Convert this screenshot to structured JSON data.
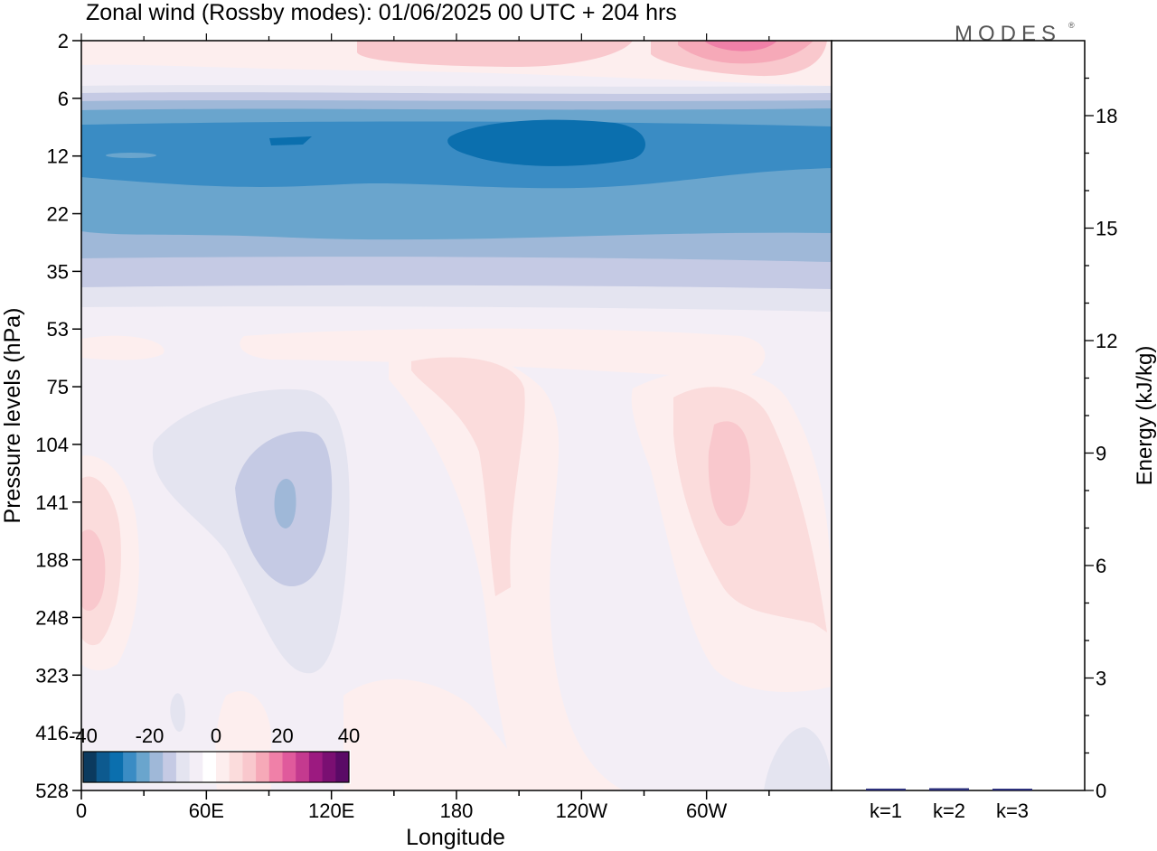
{
  "title": "Zonal wind (Rossby modes):  01/06/2025  00 UTC  + 204 hrs",
  "logo": "MODES",
  "logo_mark": "®",
  "colors": {
    "neg": [
      "#0b3a5e",
      "#0d5a8f",
      "#0b6fae",
      "#3a8cc4",
      "#6aa5cd",
      "#9fb8d8",
      "#c5cae4",
      "#e4e4f0"
    ],
    "near_zero": "#f3eef6",
    "pos": [
      "#fdeeee",
      "#fbdcdc",
      "#f9c8cd",
      "#f6a9b8",
      "#f080a8",
      "#e05a9c",
      "#c43a8f",
      "#9c1a80",
      "#7a0f72",
      "#5a0a66"
    ],
    "background": "#f3eef6"
  },
  "chart_data": [
    {
      "type": "heatmap",
      "title": "Zonal wind (Rossby modes):  01/06/2025  00 UTC  + 204 hrs",
      "xlabel": "Longitude",
      "ylabel": "Pressure levels (hPa)",
      "x_ticks": [
        "0",
        "60E",
        "120E",
        "180",
        "120W",
        "60W"
      ],
      "y_ticks": [
        "2",
        "6",
        "12",
        "22",
        "35",
        "53",
        "75",
        "104",
        "141",
        "188",
        "248",
        "323",
        "416",
        "528"
      ],
      "colorbar": {
        "ticks": [
          "-40",
          "-20",
          "0",
          "20",
          "40"
        ],
        "range": [
          -40,
          40
        ],
        "step": 5
      },
      "bands": [
        {
          "level": "2",
          "value": 3
        },
        {
          "level": "6",
          "value": -3
        },
        {
          "level": "9",
          "value": -15
        },
        {
          "level": "12",
          "value": -22
        },
        {
          "level": "22",
          "value": -15
        },
        {
          "level": "35",
          "value": -6
        },
        {
          "level": "53",
          "value": 0
        }
      ]
    },
    {
      "type": "bar",
      "categories": [
        "k=1",
        "k=2",
        "k=3"
      ],
      "values": [
        0.05,
        0.06,
        0.03
      ],
      "ylabel": "Energy (kJ/kg)",
      "y_ticks": [
        "0",
        "3",
        "6",
        "9",
        "12",
        "15",
        "18"
      ],
      "ylim": [
        0,
        20
      ]
    }
  ]
}
